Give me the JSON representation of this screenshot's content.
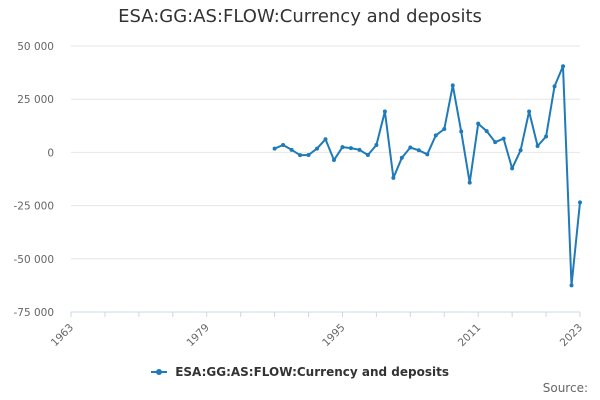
{
  "chart_data": {
    "type": "line",
    "title": "ESA:GG:AS:FLOW:Currency and deposits",
    "xlabel": "",
    "ylabel": "",
    "xlim": [
      1963,
      2023
    ],
    "ylim": [
      -75000,
      50000
    ],
    "x_ticks": [
      1963,
      1979,
      1995,
      2011,
      2023
    ],
    "y_ticks": [
      -75000,
      -50000,
      -25000,
      0,
      25000,
      50000
    ],
    "y_tick_labels": [
      "-75 000",
      "-50 000",
      "-25 000",
      "0",
      "25 000",
      "50 000"
    ],
    "grid": "horizontal",
    "legend_position": "bottom",
    "series": [
      {
        "name": "ESA:GG:AS:FLOW:Currency and deposits",
        "color": "#1f7ab8",
        "x": [
          1987,
          1988,
          1989,
          1990,
          1991,
          1992,
          1993,
          1994,
          1995,
          1996,
          1997,
          1998,
          1999,
          2000,
          2001,
          2002,
          2003,
          2004,
          2005,
          2006,
          2007,
          2008,
          2009,
          2010,
          2011,
          2012,
          2013,
          2014,
          2015,
          2016,
          2017,
          2018,
          2019,
          2020,
          2021,
          2022,
          2023
        ],
        "values": [
          1800,
          3500,
          1200,
          -1300,
          -1200,
          1800,
          6200,
          -3600,
          2500,
          2000,
          1200,
          -1200,
          3500,
          19200,
          -12000,
          -2500,
          2300,
          1000,
          -900,
          8000,
          11000,
          31500,
          9800,
          -14200,
          13500,
          10000,
          4800,
          6500,
          -7500,
          1000,
          19200,
          3000,
          7500,
          31000,
          40500,
          -62500,
          -23500
        ]
      }
    ]
  },
  "legend": {
    "label": "ESA:GG:AS:FLOW:Currency and deposits"
  },
  "source": {
    "label": "Source:"
  }
}
